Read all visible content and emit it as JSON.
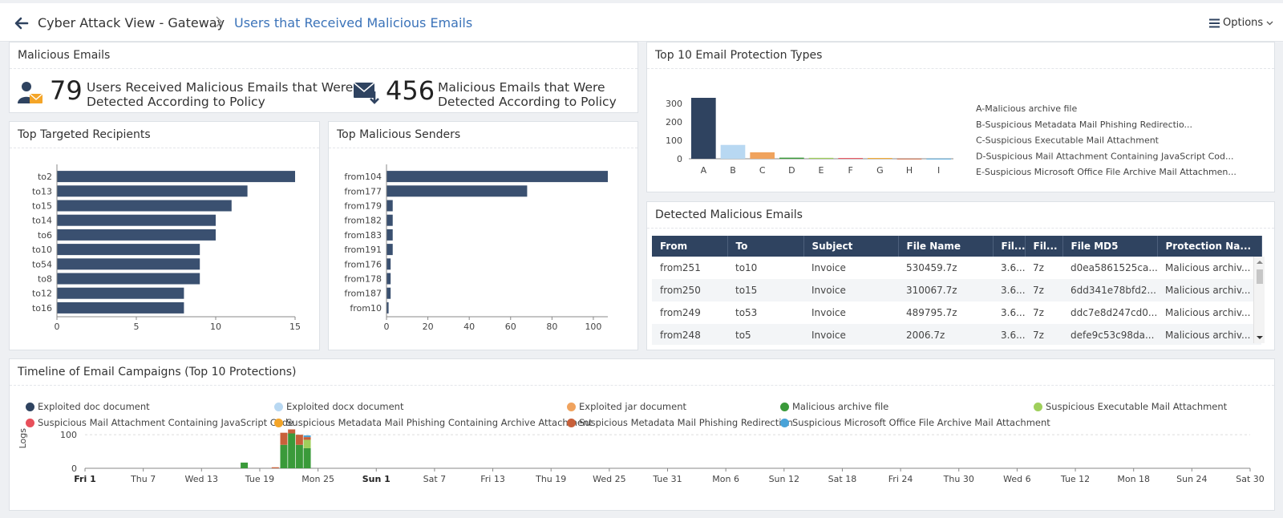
{
  "breadcrumb": {
    "parent": "Cyber Attack View - Gateway",
    "separator": ">",
    "current": "Users that Received Malicious Emails"
  },
  "options_label": "Options",
  "malicious_emails": {
    "title": "Malicious Emails",
    "kpi1": {
      "value": "79",
      "line1": "Users Received Malicious Emails that Were",
      "line2": "Detected According to Policy"
    },
    "kpi2": {
      "value": "456",
      "line1": "Malicious Emails that Were",
      "line2": "Detected According to Policy"
    }
  },
  "recipients": {
    "title": "Top Targeted Recipients"
  },
  "senders": {
    "title": "Top Malicious Senders"
  },
  "protection_types": {
    "title": "Top 10 Email Protection Types"
  },
  "detected": {
    "title": "Detected Malicious Emails",
    "columns": [
      "From",
      "To",
      "Subject",
      "File Name",
      "Fil...",
      "Fil...",
      "File MD5",
      "Protection Na..."
    ],
    "rows": [
      [
        "from251",
        "to10",
        "Invoice",
        "530459.7z",
        "3.6...",
        "7z",
        "d0ea5861525ca...",
        "Malicious archiv..."
      ],
      [
        "from250",
        "to15",
        "Invoice",
        "310067.7z",
        "3.6...",
        "7z",
        "6dd341e78bfd2...",
        "Malicious archiv..."
      ],
      [
        "from249",
        "to53",
        "Invoice",
        "489795.7z",
        "3.6...",
        "7z",
        "ddc7e8d247cd0...",
        "Malicious archiv..."
      ],
      [
        "from248",
        "to5",
        "Invoice",
        "2006.7z",
        "3.6...",
        "7z",
        "defe9c53c98da...",
        "Malicious archiv..."
      ]
    ]
  },
  "timeline": {
    "title": "Timeline of Email Campaigns (Top 10 Protections)",
    "legend": [
      {
        "label": "Exploited doc document",
        "color": "#2f4360"
      },
      {
        "label": "Exploited docx document",
        "color": "#b8d8f2"
      },
      {
        "label": "Exploited jar document",
        "color": "#f0a35e"
      },
      {
        "label": "Malicious archive file",
        "color": "#3a9a3a"
      },
      {
        "label": "Suspicious Executable Mail Attachment",
        "color": "#9fcf5b"
      },
      {
        "label": "Suspicious Mail Attachment Containing JavaScript Code",
        "color": "#e8505b"
      },
      {
        "label": "Suspicious Metadata Mail Phishing Containing Archive Attachment",
        "color": "#f4a528"
      },
      {
        "label": "Suspicious Metadata Mail Phishing Redirection",
        "color": "#c8603a"
      },
      {
        "label": "Suspicious Microsoft Office File Archive Mail Attachment",
        "color": "#4aa3d8"
      }
    ]
  },
  "chart_data": [
    {
      "type": "bar",
      "orientation": "horizontal",
      "title": "Top Targeted Recipients",
      "categories": [
        "to2",
        "to13",
        "to15",
        "to14",
        "to6",
        "to10",
        "to54",
        "to8",
        "to12",
        "to16"
      ],
      "values": [
        15,
        12,
        11,
        10,
        10,
        9,
        9,
        9,
        8,
        8
      ],
      "xlim": [
        0,
        15
      ],
      "xticks": [
        "0",
        "5",
        "10",
        "15"
      ],
      "color": "#3a5070"
    },
    {
      "type": "bar",
      "orientation": "horizontal",
      "title": "Top Malicious Senders",
      "categories": [
        "from104",
        "from177",
        "from179",
        "from182",
        "from183",
        "from191",
        "from176",
        "from178",
        "from187",
        "from10"
      ],
      "values": [
        107,
        68,
        3,
        3,
        3,
        3,
        2,
        2,
        2,
        1
      ],
      "xlim": [
        0,
        107
      ],
      "xticks": [
        "0",
        "20",
        "40",
        "60",
        "80",
        "100"
      ],
      "color": "#3a5070"
    },
    {
      "type": "bar",
      "title": "Top 10 Email Protection Types",
      "categories": [
        "A",
        "B",
        "C",
        "D",
        "E",
        "F",
        "G",
        "H",
        "I"
      ],
      "values": [
        330,
        75,
        35,
        6,
        5,
        4,
        4,
        1,
        1
      ],
      "colors": [
        "#2f4360",
        "#b8d8f2",
        "#f0a35e",
        "#3a9a3a",
        "#9fcf5b",
        "#e8505b",
        "#f4a528",
        "#c8603a",
        "#4aa3d8"
      ],
      "ylim": [
        0,
        330
      ],
      "yticks": [
        "0",
        "100",
        "200",
        "300"
      ],
      "legend": [
        "A-Malicious archive file",
        "B-Suspicious Metadata Mail Phishing Redirectio...",
        "C-Suspicious Executable Mail Attachment",
        "D-Suspicious Mail Attachment Containing JavaScript Cod...",
        "E-Suspicious Microsoft Office File Archive Mail Attachmen..."
      ]
    },
    {
      "type": "bar",
      "stacked": true,
      "title": "Timeline of Email Campaigns (Top 10 Protections)",
      "ylabel": "Logs",
      "yticks": [
        "0",
        "100"
      ],
      "ylim": [
        0,
        110
      ],
      "x_tick_labels": [
        "Fri 1",
        "Thu 7",
        "Wed 13",
        "Tue 19",
        "Mon 25",
        "Sun 1",
        "Sat 7",
        "Fri 13",
        "Thu 19",
        "Wed 25",
        "Tue 31",
        "Mon 6",
        "Sun 12",
        "Sat 18",
        "Fri 24",
        "Thu 30",
        "Wed 6",
        "Tue 12",
        "Mon 18",
        "Sun 24",
        "Sat 30"
      ],
      "bold_ticks": [
        "Fri 1",
        "Sun 1"
      ],
      "x_day_range": [
        0,
        150
      ],
      "bars": [
        {
          "day": 20.5,
          "segments": [
            {
              "series": "Malicious archive file",
              "value": 17
            }
          ]
        },
        {
          "day": 24.5,
          "segments": [
            {
              "series": "Suspicious Metadata Mail Phishing Redirection",
              "value": 3
            }
          ]
        },
        {
          "day": 25.6,
          "segments": [
            {
              "series": "Malicious archive file",
              "value": 70
            },
            {
              "series": "Suspicious Metadata Mail Phishing Redirection",
              "value": 36
            }
          ]
        },
        {
          "day": 26.6,
          "segments": [
            {
              "series": "Malicious archive file",
              "value": 104
            },
            {
              "series": "Suspicious Metadata Mail Phishing Redirection",
              "value": 12
            }
          ]
        },
        {
          "day": 27.6,
          "segments": [
            {
              "series": "Malicious archive file",
              "value": 70
            },
            {
              "series": "Suspicious Metadata Mail Phishing Redirection",
              "value": 30
            }
          ]
        },
        {
          "day": 28.6,
          "segments": [
            {
              "series": "Malicious archive file",
              "value": 60
            },
            {
              "series": "Suspicious Executable Mail Attachment",
              "value": 25
            },
            {
              "series": "Suspicious Metadata Mail Phishing Redirection",
              "value": 8
            },
            {
              "series": "Suspicious Microsoft Office File Archive Mail Attachment",
              "value": 5
            }
          ]
        }
      ]
    }
  ]
}
